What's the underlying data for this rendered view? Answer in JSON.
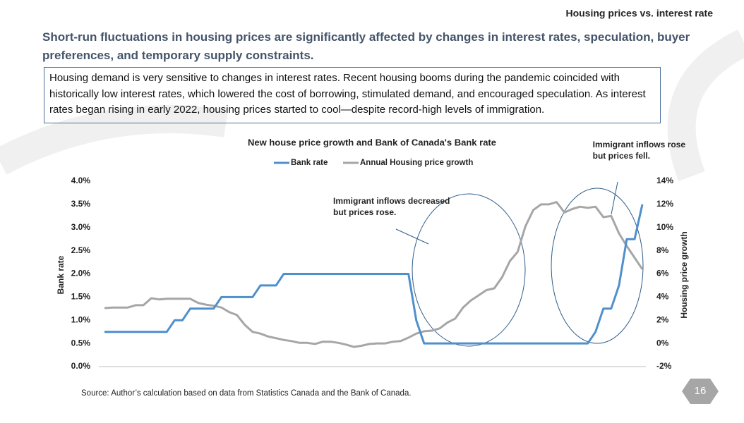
{
  "header": {
    "title": "Housing prices vs. interest rate"
  },
  "headline": "Short-run fluctuations in housing prices are significantly affected by changes in interest rates, speculation, buyer preferences, and temporary supply constraints.",
  "summary": "Housing demand is very sensitive to changes in interest rates. Recent housing booms during the pandemic coincided with historically low interest rates, which lowered the cost of borrowing, stimulated demand, and encouraged speculation. As interest rates began rising in early 2022, housing prices started to cool—despite record-high levels of immigration.",
  "source": "Source: Author’s calculation based on data from Statistics Canada and the Bank of Canada.",
  "page_number": "16",
  "chart_data": {
    "type": "line",
    "title": "New house price growth and Bank of Canada's Bank rate",
    "y_label": "Bank rate",
    "y2_label": "Housing price growth",
    "categories": [
      null,
      null,
      null,
      null,
      null,
      null,
      null,
      null,
      null,
      null,
      null,
      null,
      null,
      null,
      null,
      null,
      null,
      null,
      null,
      null,
      null,
      null,
      null,
      null,
      null,
      null,
      null,
      null,
      null,
      null,
      null,
      null,
      null,
      null,
      null,
      null,
      null,
      null,
      null,
      null,
      null,
      null,
      null,
      null,
      null,
      null,
      null,
      null,
      null,
      null,
      null,
      null,
      null,
      null,
      null,
      null,
      null,
      null,
      null,
      null,
      null,
      null,
      null,
      null,
      null,
      null,
      null,
      null,
      null,
      null
    ],
    "series": [
      {
        "name": "Bank rate",
        "color": "#4f8fcb",
        "values": [
          0.75,
          0.75,
          0.75,
          0.75,
          0.75,
          0.75,
          0.75,
          0.75,
          0.75,
          1.0,
          1.0,
          1.25,
          1.25,
          1.25,
          1.25,
          1.5,
          1.5,
          1.5,
          1.5,
          1.5,
          1.75,
          1.75,
          1.75,
          2.0,
          2.0,
          2.0,
          2.0,
          2.0,
          2.0,
          2.0,
          2.0,
          2.0,
          2.0,
          2.0,
          2.0,
          2.0,
          2.0,
          2.0,
          2.0,
          2.0,
          1.0,
          0.5,
          0.5,
          0.5,
          0.5,
          0.5,
          0.5,
          0.5,
          0.5,
          0.5,
          0.5,
          0.5,
          0.5,
          0.5,
          0.5,
          0.5,
          0.5,
          0.5,
          0.5,
          0.5,
          0.5,
          0.5,
          0.5,
          0.75,
          1.25,
          1.25,
          1.75,
          2.75,
          2.75,
          3.5
        ]
      },
      {
        "name": "Annual Housing price growth",
        "color": "#a6a6a6",
        "axis": "y2",
        "values": [
          3.05,
          3.1,
          3.1,
          3.1,
          3.3,
          3.3,
          3.9,
          3.8,
          3.85,
          3.85,
          3.85,
          3.85,
          3.5,
          3.35,
          3.25,
          3.1,
          2.7,
          2.45,
          1.6,
          1.0,
          0.85,
          0.6,
          0.45,
          0.3,
          0.2,
          0.05,
          0.05,
          -0.05,
          0.15,
          0.15,
          0.05,
          -0.1,
          -0.3,
          -0.2,
          -0.05,
          0.0,
          0.0,
          0.15,
          0.2,
          0.5,
          0.85,
          1.05,
          1.1,
          1.3,
          1.8,
          2.15,
          3.1,
          3.7,
          4.15,
          4.6,
          4.75,
          5.7,
          7.1,
          7.9,
          10.1,
          11.5,
          12.0,
          12.0,
          12.2,
          11.3,
          11.6,
          11.8,
          11.7,
          11.8,
          10.9,
          11.0,
          9.5,
          8.4,
          7.4,
          6.4
        ]
      }
    ],
    "ylim": [
      0,
      4
    ],
    "y2lim": [
      -2,
      14
    ],
    "yticks": [
      {
        "value": 0,
        "label": "0.0%"
      },
      {
        "value": 0.5,
        "label": "0.5%"
      },
      {
        "value": 1,
        "label": "1.0%"
      },
      {
        "value": 1.5,
        "label": "1.5%"
      },
      {
        "value": 2,
        "label": "2.0%"
      },
      {
        "value": 2.5,
        "label": "2.5%"
      },
      {
        "value": 3,
        "label": "3.0%"
      },
      {
        "value": 3.5,
        "label": "3.5%"
      },
      {
        "value": 4,
        "label": "4.0%"
      }
    ],
    "y2ticks": [
      {
        "value": -2,
        "label": "-2%"
      },
      {
        "value": 0,
        "label": "0%"
      },
      {
        "value": 2,
        "label": "2%"
      },
      {
        "value": 4,
        "label": "4%"
      },
      {
        "value": 6,
        "label": "6%"
      },
      {
        "value": 8,
        "label": "8%"
      },
      {
        "value": 10,
        "label": "10%"
      },
      {
        "value": 12,
        "label": "12%"
      },
      {
        "value": 14,
        "label": "14%"
      }
    ],
    "legend": "top",
    "annotations": [
      {
        "lines": [
          "Immigrant inflows decreased",
          "but prices rose."
        ]
      },
      {
        "lines": [
          "Immigrant inflows rose",
          "but prices fell."
        ]
      }
    ]
  }
}
